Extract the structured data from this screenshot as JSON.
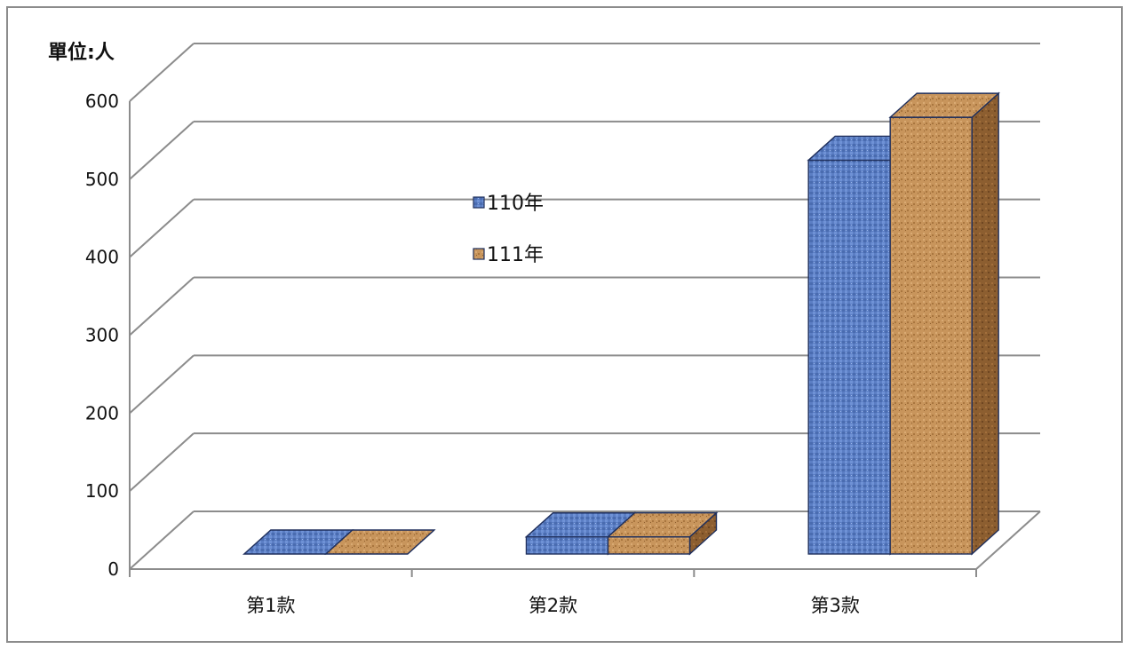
{
  "chart_data": {
    "type": "bar",
    "categories": [
      "第1款",
      "第2款",
      "第3款"
    ],
    "series": [
      {
        "name": "110年",
        "values": [
          0,
          22,
          505
        ],
        "color": "#5b7ec4"
      },
      {
        "name": "111年",
        "values": [
          0,
          22,
          560
        ],
        "color": "#c8955c"
      }
    ],
    "ylabel": "單位:人",
    "ylim": [
      0,
      600
    ],
    "yticks": [
      0,
      100,
      200,
      300,
      400,
      500,
      600
    ],
    "grid": true,
    "legend_position": "center",
    "style": "3d-column"
  }
}
